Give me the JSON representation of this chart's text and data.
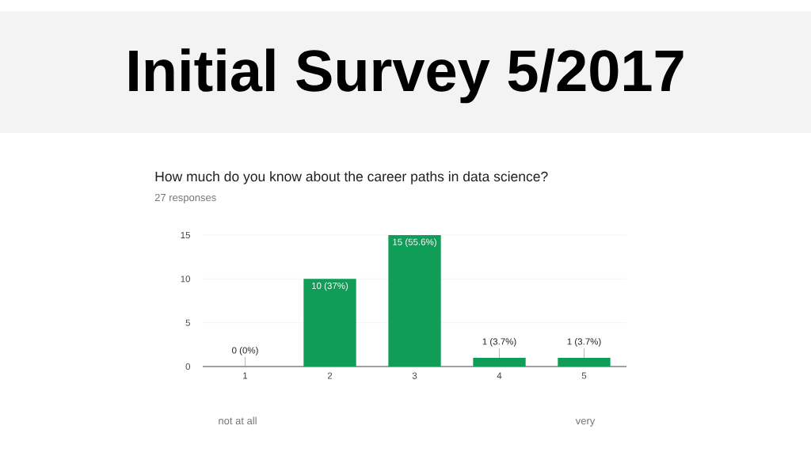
{
  "chart_data": {
    "type": "bar",
    "title": "Initial Survey 5/2017",
    "subtitle": "How much do you know about the career paths in data science?",
    "annotations": [
      "27 responses",
      "not at all",
      "very"
    ],
    "categories": [
      "1",
      "2",
      "3",
      "4",
      "5"
    ],
    "values": [
      0,
      10,
      15,
      1,
      1
    ],
    "color": "#0f9d58",
    "value_labels": [
      "0 (0%)",
      "10 (37%)",
      "15 (55.6%)",
      "1 (3.7%)",
      "1 (3.7%)"
    ],
    "ylim": [
      0,
      15
    ],
    "yticks": [
      0,
      5,
      10,
      15
    ],
    "grid": "y"
  }
}
